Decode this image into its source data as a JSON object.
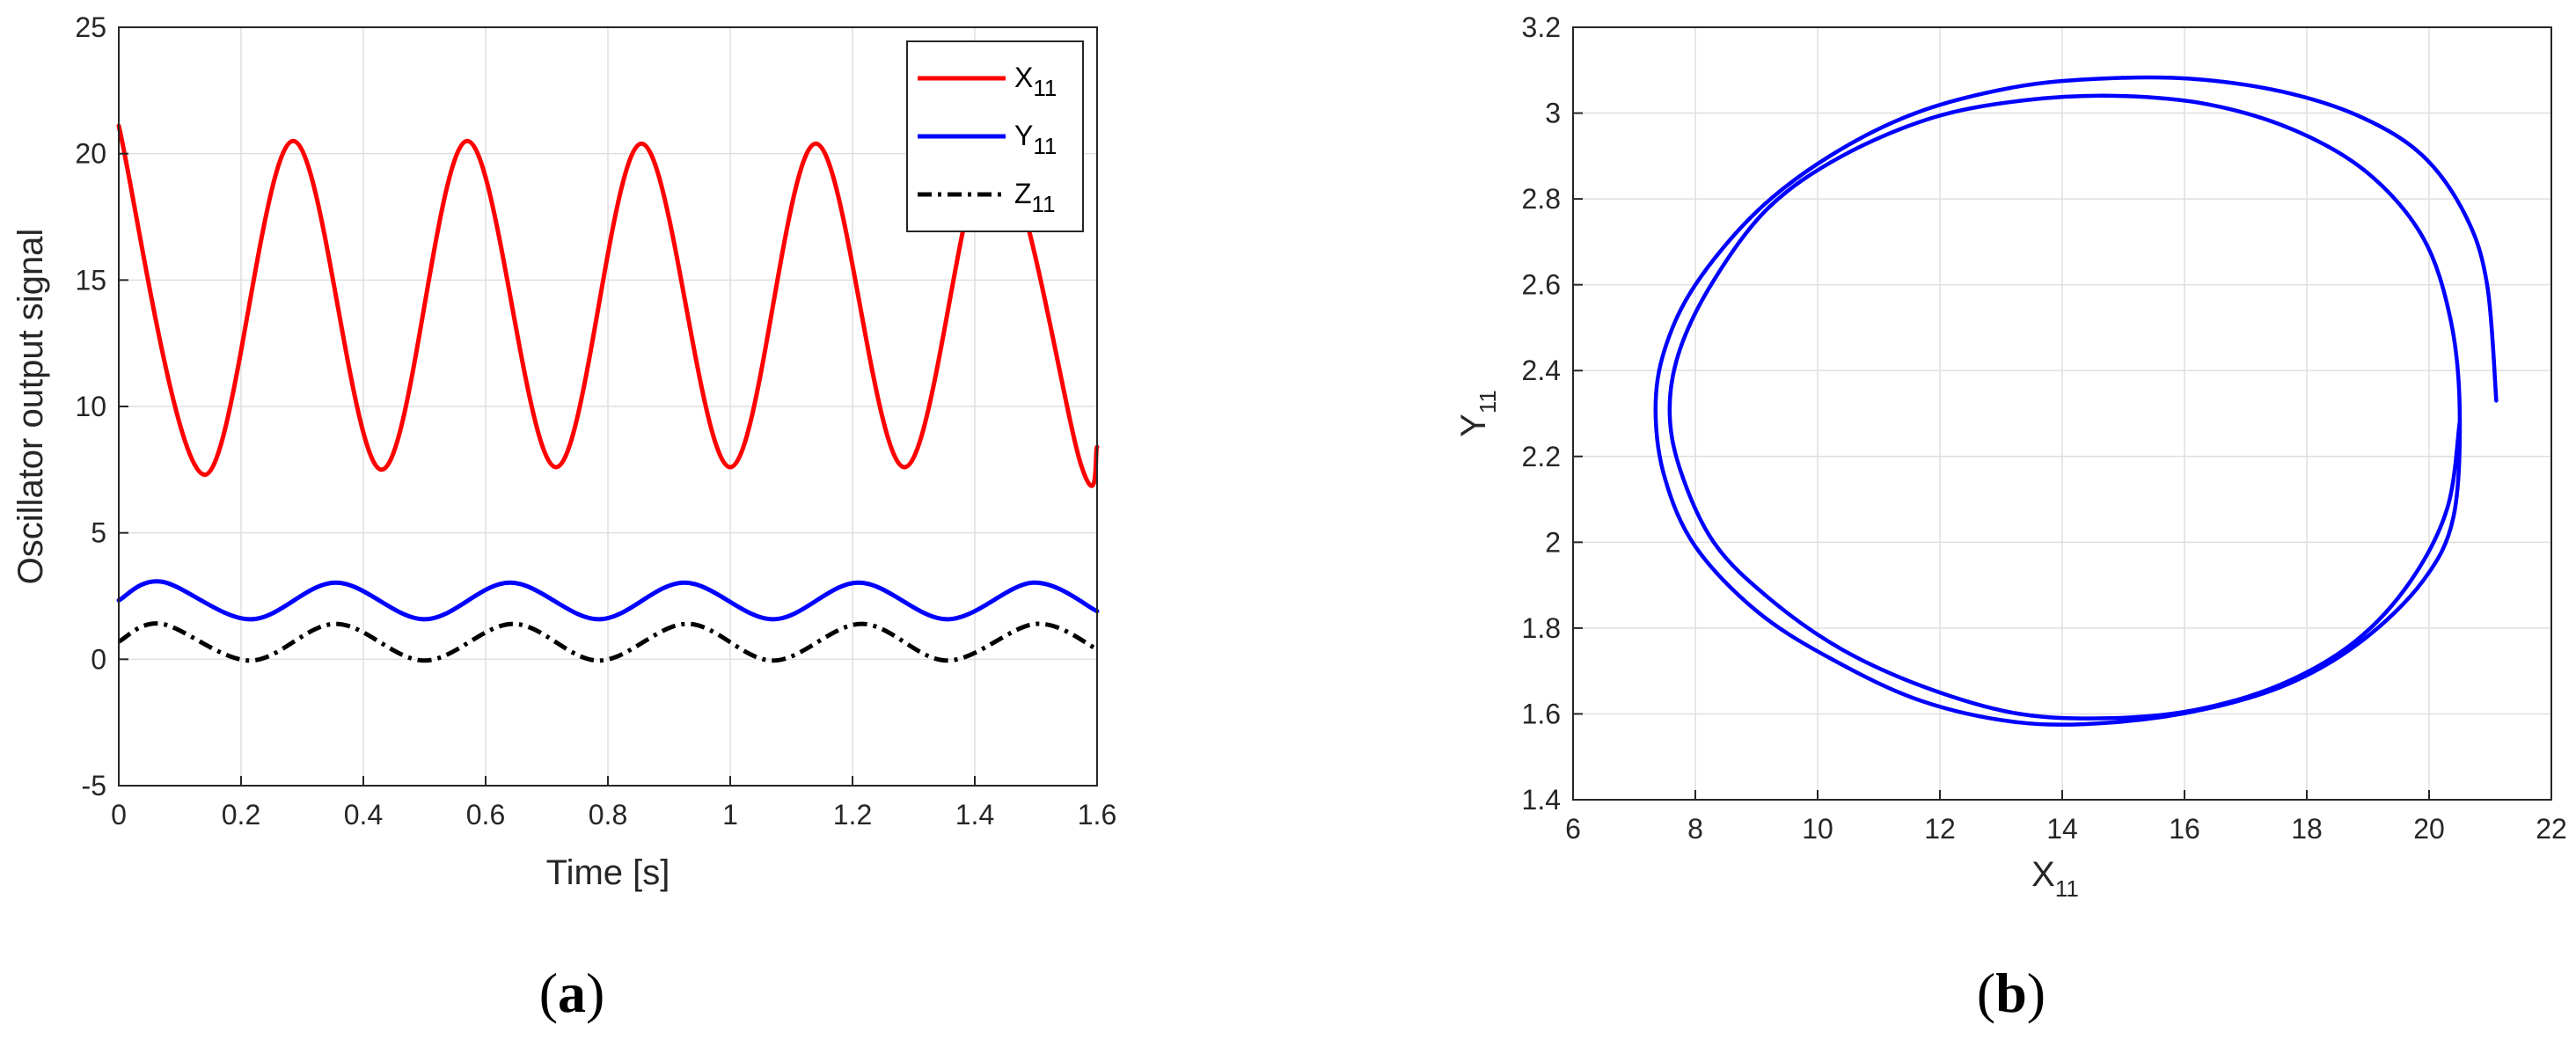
{
  "chart_data": [
    {
      "type": "line",
      "panel_label": "a",
      "xlabel": "Time [s]",
      "ylabel": "Oscillator output signal",
      "xlim": [
        0,
        1.6
      ],
      "ylim": [
        -5,
        25
      ],
      "xticks": [
        "0",
        "0.2",
        "0.4",
        "0.6",
        "0.8",
        "1",
        "1.2",
        "1.4",
        "1.6"
      ],
      "yticks": [
        "-5",
        "0",
        "5",
        "10",
        "15",
        "20",
        "25"
      ],
      "grid": true,
      "legend_position": "top-right",
      "series": [
        {
          "name": "X",
          "name_sub": "11",
          "color": "#ff0000",
          "style": "solid",
          "x": [
            0,
            0.14,
            0.285,
            0.43,
            0.57,
            0.715,
            0.855,
            1.0,
            1.14,
            1.285,
            1.43,
            1.575,
            1.6
          ],
          "y": [
            21.1,
            7.3,
            20.5,
            7.5,
            20.5,
            7.6,
            20.4,
            7.6,
            20.4,
            7.6,
            20.4,
            7.6,
            8.4
          ]
        },
        {
          "name": "Y",
          "name_sub": "11",
          "color": "#0000ff",
          "style": "solid",
          "x": [
            0,
            0.07,
            0.215,
            0.355,
            0.5,
            0.64,
            0.785,
            0.925,
            1.07,
            1.21,
            1.355,
            1.495,
            1.6
          ],
          "y": [
            2.33,
            3.07,
            1.58,
            3.03,
            1.58,
            3.03,
            1.58,
            3.03,
            1.58,
            3.03,
            1.58,
            3.03,
            1.9
          ]
        },
        {
          "name": "Z",
          "name_sub": "11",
          "color": "#000000",
          "style": "dashdot",
          "x": [
            0,
            0.07,
            0.215,
            0.355,
            0.5,
            0.645,
            0.785,
            0.93,
            1.07,
            1.215,
            1.355,
            1.5,
            1.6
          ],
          "y": [
            0.7,
            1.4,
            -0.05,
            1.4,
            -0.05,
            1.4,
            -0.05,
            1.4,
            -0.05,
            1.4,
            -0.05,
            1.4,
            0.4
          ]
        }
      ]
    },
    {
      "type": "line",
      "panel_label": "b",
      "xlabel": "X",
      "xlabel_sub": "11",
      "ylabel": "Y",
      "ylabel_sub": "11",
      "xlim": [
        6,
        22
      ],
      "ylim": [
        1.4,
        3.2
      ],
      "xticks": [
        "6",
        "8",
        "10",
        "12",
        "14",
        "16",
        "18",
        "20",
        "22"
      ],
      "yticks": [
        "1.4",
        "1.6",
        "1.8",
        "2",
        "2.2",
        "2.4",
        "2.6",
        "2.8",
        "3",
        "3.2"
      ],
      "grid": true,
      "series": [
        {
          "color": "#0000ff",
          "style": "solid",
          "x": [
            21.1,
            20.95,
            20.6,
            19.9,
            18.9,
            17.6,
            16.1,
            14.6,
            13.2,
            11.6,
            10.2,
            9.0,
            8.0,
            7.5,
            7.35,
            7.5,
            8.0,
            9.0,
            10.2,
            11.7,
            13.3,
            14.8,
            16.3,
            17.7,
            18.9,
            19.9,
            20.4,
            20.5,
            20.35,
            19.9,
            19.0,
            17.8,
            16.4,
            14.9,
            13.4,
            11.9,
            10.4,
            9.2,
            8.3,
            7.75,
            7.58,
            7.75,
            8.3,
            9.2,
            10.4,
            11.8,
            13.3,
            14.8,
            16.2,
            17.6,
            18.8,
            19.7,
            20.3,
            20.5
          ],
          "y": [
            2.33,
            2.6,
            2.76,
            2.9,
            2.99,
            3.05,
            3.08,
            3.08,
            3.06,
            3.0,
            2.9,
            2.77,
            2.6,
            2.45,
            2.31,
            2.15,
            1.99,
            1.84,
            1.73,
            1.63,
            1.58,
            1.58,
            1.61,
            1.67,
            1.77,
            1.91,
            2.06,
            2.31,
            2.52,
            2.71,
            2.86,
            2.96,
            3.02,
            3.04,
            3.03,
            2.99,
            2.9,
            2.78,
            2.61,
            2.45,
            2.31,
            2.17,
            2.0,
            1.87,
            1.75,
            1.66,
            1.6,
            1.59,
            1.61,
            1.67,
            1.77,
            1.91,
            2.08,
            2.28
          ]
        }
      ]
    }
  ]
}
